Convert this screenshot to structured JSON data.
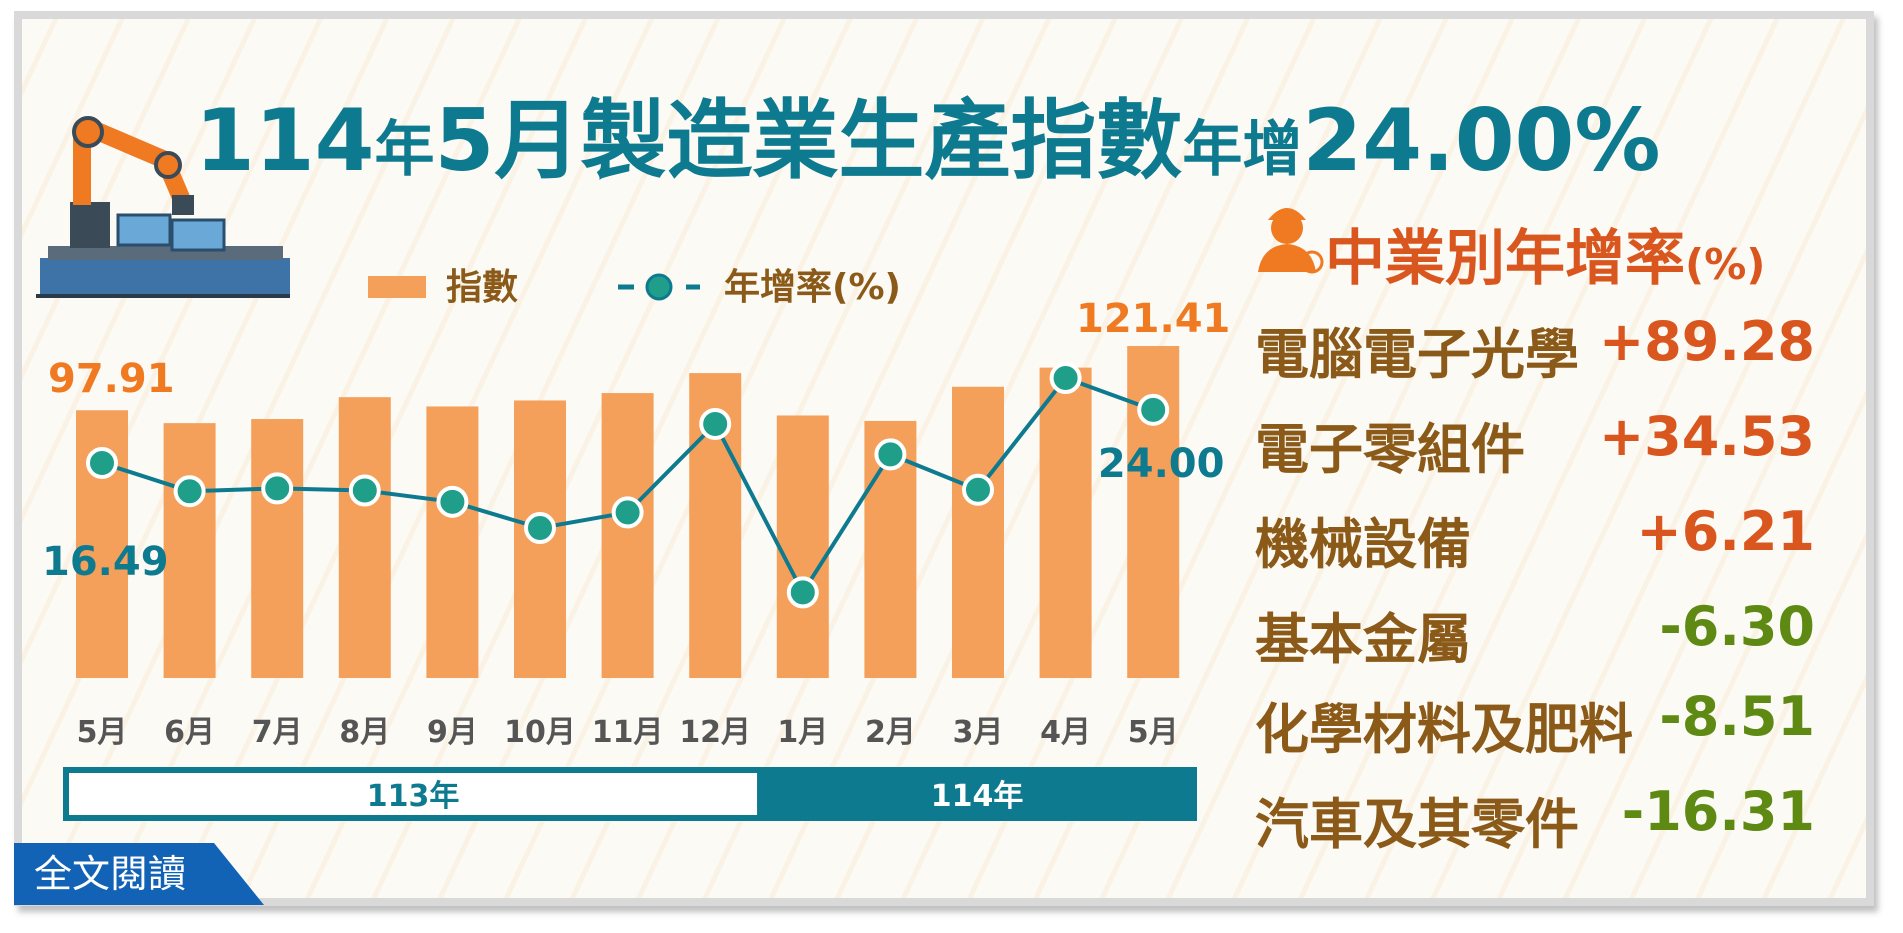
{
  "title": {
    "part1": "114",
    "part2": "年",
    "part3": "5月製造業生產指數",
    "part4": "年增",
    "part5": "24.00%"
  },
  "legend": {
    "index_label": "指數",
    "rate_label": "年增率(%)"
  },
  "chart_data": {
    "type": "bar",
    "categories": [
      "5月",
      "6月",
      "7月",
      "8月",
      "9月",
      "10月",
      "11月",
      "12月",
      "1月",
      "2月",
      "3月",
      "4月",
      "5月"
    ],
    "series": [
      {
        "name": "指數",
        "values": [
          97.91,
          93.2,
          94.7,
          102.7,
          99.3,
          101.5,
          104.2,
          111.5,
          96.0,
          94.0,
          106.5,
          113.5,
          121.41
        ]
      },
      {
        "name": "年增率(%)",
        "values": [
          16.49,
          12.5,
          12.9,
          12.6,
          11.0,
          7.3,
          9.5,
          22.0,
          -1.8,
          17.7,
          12.7,
          28.5,
          24.0
        ]
      }
    ],
    "data_labels": {
      "first_index": "97.91",
      "last_index": "121.41",
      "first_rate": "16.49",
      "last_rate": "24.00"
    },
    "year_groups": [
      {
        "label": "113年",
        "count": 8
      },
      {
        "label": "114年",
        "count": 5
      }
    ],
    "colors": {
      "bar": "#f5a05a",
      "line": "#0e7a8f",
      "point": "#1f9e8a"
    }
  },
  "industries": {
    "title": "中業別年增率",
    "unit": "(%)",
    "items": [
      {
        "name": "電腦電子光學",
        "value": "+89.28",
        "sign": "pos"
      },
      {
        "name": "電子零組件",
        "value": "+34.53",
        "sign": "pos"
      },
      {
        "name": "機械設備",
        "value": "+6.21",
        "sign": "pos"
      },
      {
        "name": "基本金屬",
        "value": "-6.30",
        "sign": "neg"
      },
      {
        "name": "化學材料及肥料",
        "value": "-8.51",
        "sign": "neg"
      },
      {
        "name": "汽車及其零件",
        "value": "-16.31",
        "sign": "neg"
      }
    ]
  },
  "read_button": {
    "label": "全文閱讀"
  },
  "colors": {
    "title": "#0e7a8f",
    "accent": "#d9571f",
    "negative": "#5e8a14",
    "button": "#1262b6"
  }
}
